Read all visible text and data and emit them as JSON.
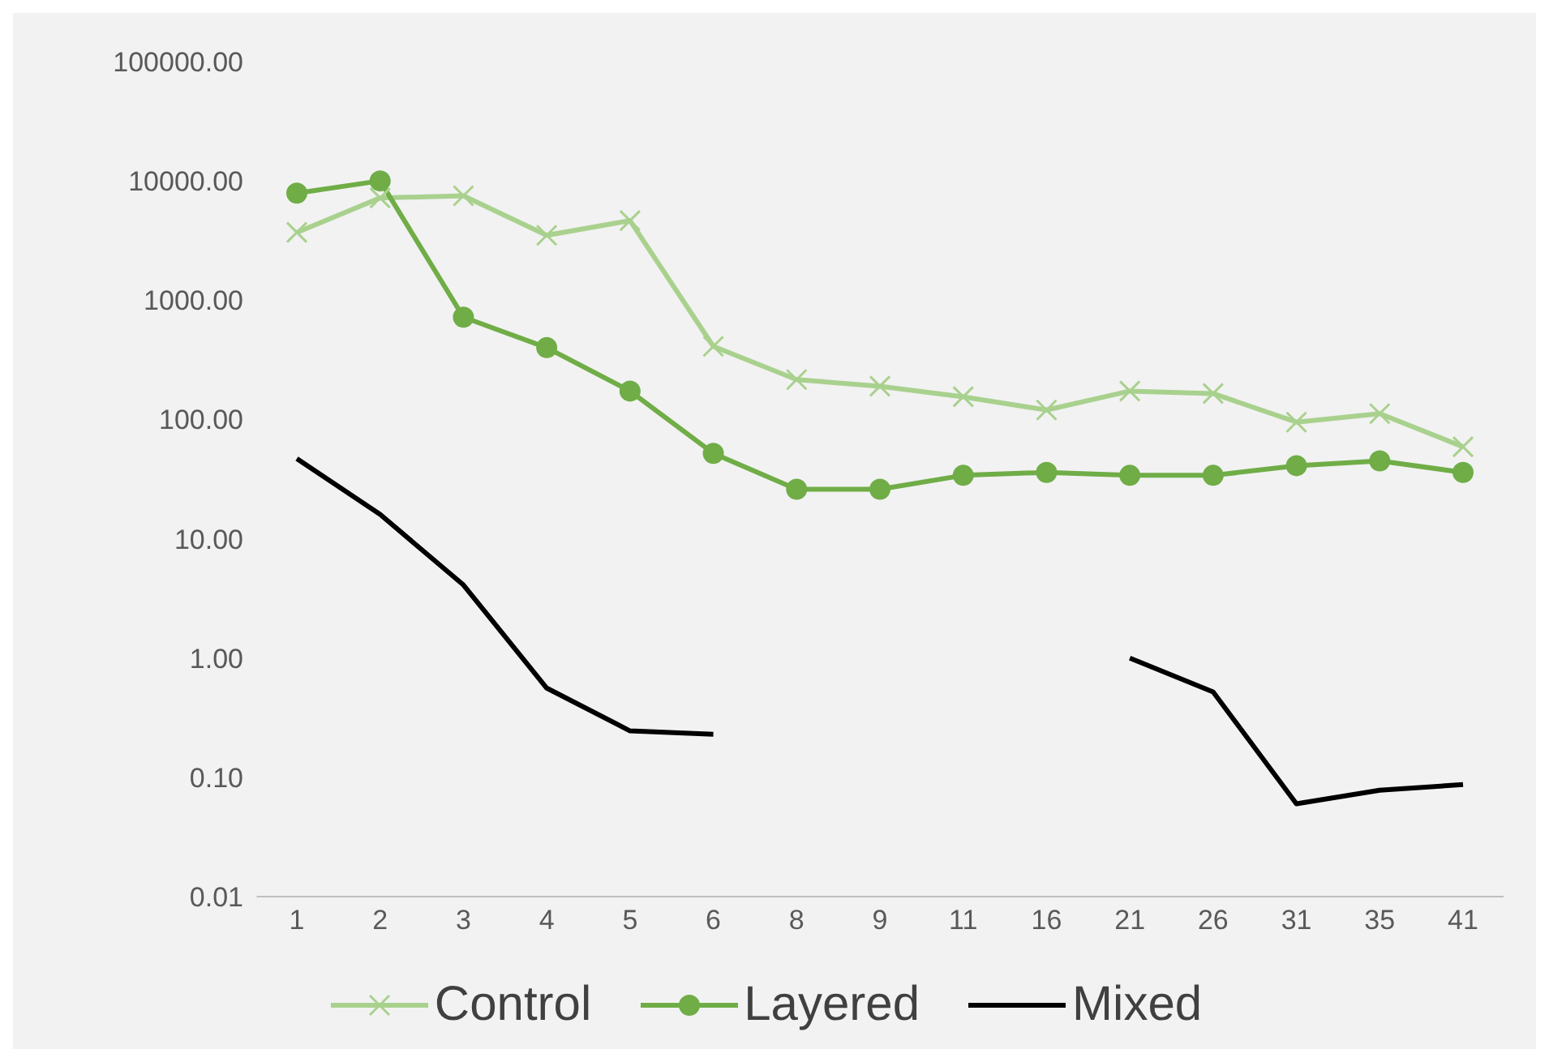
{
  "chart_data": {
    "type": "line",
    "categories": [
      "1",
      "2",
      "3",
      "4",
      "5",
      "6",
      "8",
      "9",
      "11",
      "16",
      "21",
      "26",
      "31",
      "35",
      "41"
    ],
    "series": [
      {
        "name": "Control",
        "color": "#a9d18e",
        "marker": "cross",
        "values": [
          3700,
          7200,
          7500,
          3500,
          4650,
          410,
          216,
          190,
          155,
          120,
          173,
          165,
          95,
          112,
          59
        ]
      },
      {
        "name": "Layered",
        "color": "#70ad47",
        "marker": "circle",
        "values": [
          7900,
          10000,
          720,
          400,
          173,
          52,
          26,
          26,
          34,
          36,
          34,
          34,
          41,
          45,
          36
        ]
      },
      {
        "name": "Mixed",
        "color": "#000000",
        "marker": "none",
        "values": [
          47,
          16,
          4.1,
          0.56,
          0.245,
          0.23,
          null,
          null,
          null,
          null,
          1.0,
          0.52,
          0.06,
          0.078,
          0.087
        ]
      }
    ],
    "log": "y",
    "ylim": [
      0.01,
      100000
    ],
    "yticks": [
      {
        "value": 0.01,
        "label": "0.01"
      },
      {
        "value": 0.1,
        "label": "0.10"
      },
      {
        "value": 1,
        "label": "1.00"
      },
      {
        "value": 10,
        "label": "10.00"
      },
      {
        "value": 100,
        "label": "100.00"
      },
      {
        "value": 1000,
        "label": "1000.00"
      },
      {
        "value": 10000,
        "label": "10000.00"
      },
      {
        "value": 100000,
        "label": "100000.00"
      }
    ],
    "grid": false,
    "legend": "bottom"
  }
}
